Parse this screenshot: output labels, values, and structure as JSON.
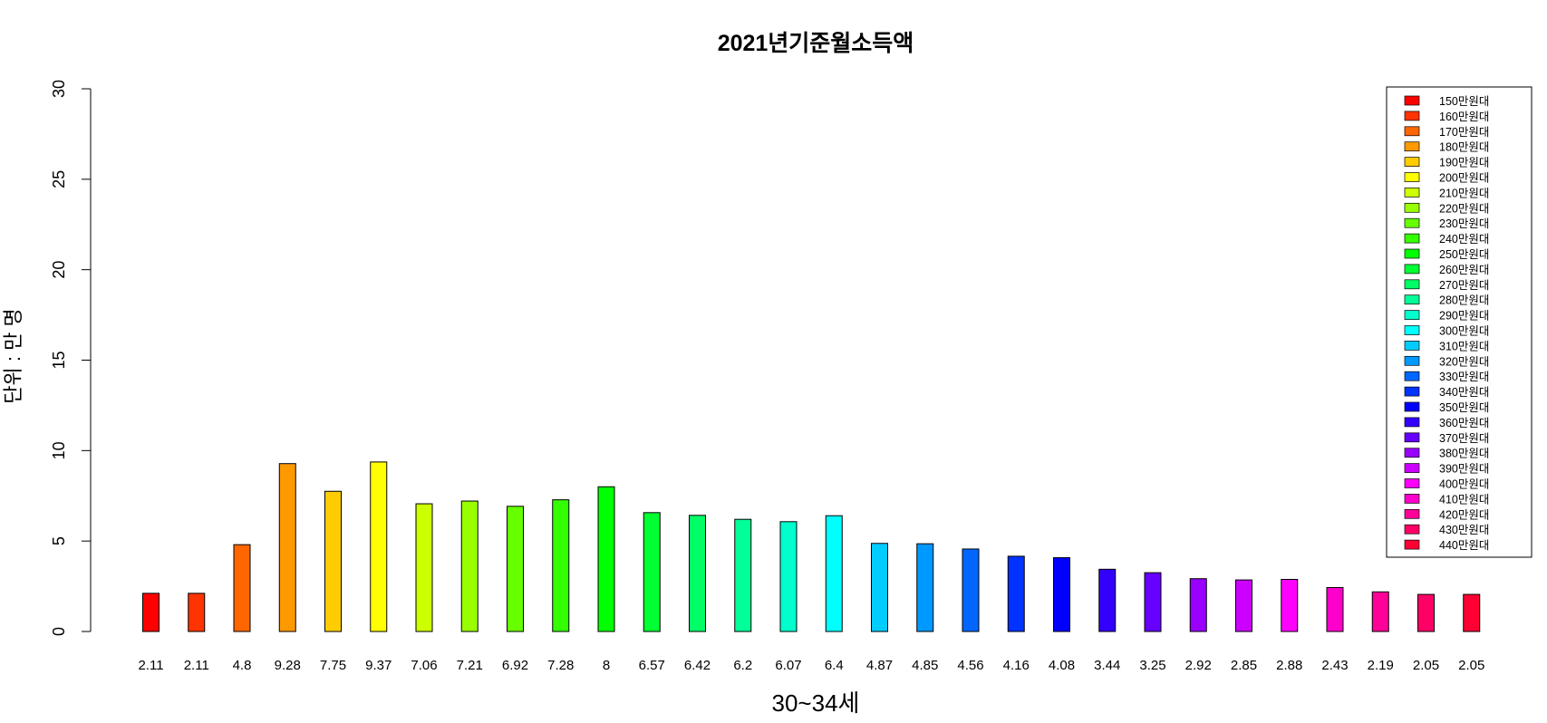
{
  "chart_data": {
    "type": "bar",
    "title": "2021년기준월소득액",
    "xlabel": "30~34세",
    "ylabel": "단위 : 만 명",
    "ylim": [
      0,
      30
    ],
    "yticks": [
      0,
      5,
      10,
      15,
      20,
      25,
      30
    ],
    "grid": false,
    "legend_position": "top-right",
    "categories": [
      "150만원대",
      "160만원대",
      "170만원대",
      "180만원대",
      "190만원대",
      "200만원대",
      "210만원대",
      "220만원대",
      "230만원대",
      "240만원대",
      "250만원대",
      "260만원대",
      "270만원대",
      "280만원대",
      "290만원대",
      "300만원대",
      "310만원대",
      "320만원대",
      "330만원대",
      "340만원대",
      "350만원대",
      "360만원대",
      "370만원대",
      "380만원대",
      "390만원대",
      "400만원대",
      "410만원대",
      "420만원대",
      "430만원대",
      "440만원대"
    ],
    "values": [
      2.11,
      2.11,
      4.8,
      9.28,
      7.75,
      9.37,
      7.06,
      7.21,
      6.92,
      7.28,
      8,
      6.57,
      6.42,
      6.2,
      6.07,
      6.4,
      4.87,
      4.85,
      4.56,
      4.16,
      4.08,
      3.44,
      3.25,
      2.92,
      2.85,
      2.88,
      2.43,
      2.19,
      2.05,
      2.05
    ],
    "value_labels": [
      "2.11",
      "2.11",
      "4.8",
      "9.28",
      "7.75",
      "9.37",
      "7.06",
      "7.21",
      "6.92",
      "7.28",
      "8",
      "6.57",
      "6.42",
      "6.2",
      "6.07",
      "6.4",
      "4.87",
      "4.85",
      "4.56",
      "4.16",
      "4.08",
      "3.44",
      "3.25",
      "2.92",
      "2.85",
      "2.88",
      "2.43",
      "2.19",
      "2.05",
      "2.05"
    ],
    "colors": [
      "#FF0000",
      "#FF3300",
      "#FF6600",
      "#FF9900",
      "#FFCC00",
      "#FFFF00",
      "#CCFF00",
      "#99FF00",
      "#66FF00",
      "#33FF00",
      "#00FF00",
      "#00FF33",
      "#00FF66",
      "#00FF99",
      "#00FFCC",
      "#00FFFF",
      "#00CCFF",
      "#0099FF",
      "#0066FF",
      "#0033FF",
      "#0000FF",
      "#3300FF",
      "#6600FF",
      "#9900FF",
      "#CC00FF",
      "#FF00FF",
      "#FF00CC",
      "#FF0099",
      "#FF0066",
      "#FF0033"
    ]
  }
}
